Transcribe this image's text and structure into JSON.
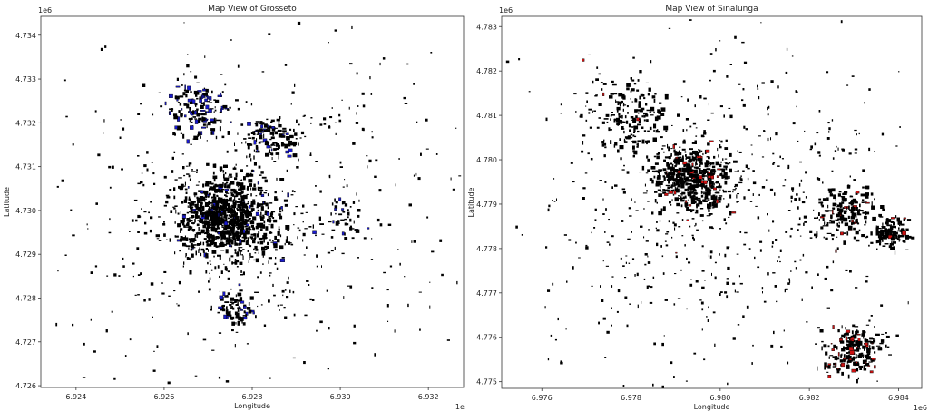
{
  "chart_data": [
    {
      "type": "scatter",
      "title": "Map View of Grosseto",
      "xlabel": "Longitude",
      "ylabel": "Latitude",
      "x_offset_label": "1e6",
      "y_offset_label": "1e6",
      "xlim": [
        6.9232,
        6.9328
      ],
      "ylim": [
        4.72596,
        4.73443
      ],
      "xticks": [
        "6.924",
        "6.926",
        "6.928",
        "6.930",
        "6.932"
      ],
      "xtick_values": [
        6.924,
        6.926,
        6.928,
        6.93,
        6.932
      ],
      "yticks": [
        "4.726",
        "4.727",
        "4.728",
        "4.729",
        "4.730",
        "4.731",
        "4.732",
        "4.733",
        "4.734"
      ],
      "ytick_values": [
        4.726,
        4.727,
        4.728,
        4.729,
        4.73,
        4.731,
        4.732,
        4.733,
        4.734
      ],
      "building_color": "#000000",
      "highlight_color": "#1a1acc",
      "clusters": [
        {
          "lon": 6.9274,
          "lat": 4.72985,
          "spread": 0.0012,
          "count": 900,
          "highlight": 0.04
        },
        {
          "lon": 6.9268,
          "lat": 4.7323,
          "spread": 0.0007,
          "count": 140,
          "highlight": 0.35
        },
        {
          "lon": 6.9284,
          "lat": 4.7317,
          "spread": 0.0006,
          "count": 120,
          "highlight": 0.15
        },
        {
          "lon": 6.9276,
          "lat": 4.7278,
          "spread": 0.0005,
          "count": 80,
          "highlight": 0.2
        },
        {
          "lon": 6.93,
          "lat": 4.7299,
          "spread": 0.0006,
          "count": 40,
          "highlight": 0.2
        },
        {
          "lon": 6.928,
          "lat": 4.7301,
          "spread": 0.0048,
          "count": 500,
          "highlight": 0.0
        }
      ]
    },
    {
      "type": "scatter",
      "title": "Map View of Sinalunga",
      "xlabel": "Longitude",
      "ylabel": "Latitude",
      "x_offset_label": "1e6",
      "y_offset_label": "1e6",
      "xlim": [
        6.9751,
        6.98452
      ],
      "ylim": [
        4.77485,
        4.78323
      ],
      "xticks": [
        "6.976",
        "6.978",
        "6.980",
        "6.982",
        "6.984"
      ],
      "xtick_values": [
        6.976,
        6.978,
        6.98,
        6.982,
        6.984
      ],
      "yticks": [
        "4.775",
        "4.776",
        "4.777",
        "4.778",
        "4.779",
        "4.780",
        "4.781",
        "4.782",
        "4.783"
      ],
      "ytick_values": [
        4.775,
        4.776,
        4.777,
        4.778,
        4.779,
        4.78,
        4.781,
        4.782,
        4.783
      ],
      "building_color": "#000000",
      "highlight_color": "#cc1111",
      "clusters": [
        {
          "lon": 6.9794,
          "lat": 4.7796,
          "spread": 0.0009,
          "count": 500,
          "highlight": 0.06
        },
        {
          "lon": 6.9828,
          "lat": 4.7789,
          "spread": 0.0007,
          "count": 180,
          "highlight": 0.05
        },
        {
          "lon": 6.9838,
          "lat": 4.7784,
          "spread": 0.0004,
          "count": 120,
          "highlight": 0.03
        },
        {
          "lon": 6.983,
          "lat": 4.7757,
          "spread": 0.0007,
          "count": 220,
          "highlight": 0.12
        },
        {
          "lon": 6.978,
          "lat": 4.781,
          "spread": 0.001,
          "count": 150,
          "highlight": 0.03
        },
        {
          "lon": 6.98,
          "lat": 4.779,
          "spread": 0.0045,
          "count": 650,
          "highlight": 0.01
        }
      ]
    }
  ]
}
